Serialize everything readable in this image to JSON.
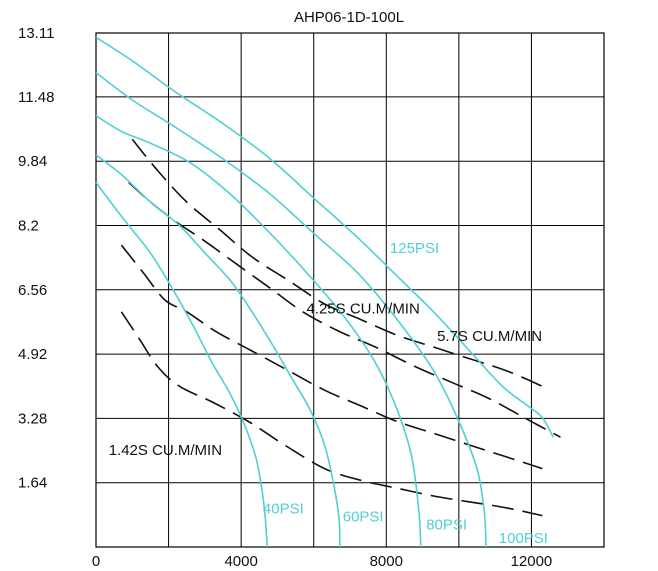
{
  "chart_data": {
    "type": "line",
    "title": "AHP06-1D-100L",
    "xlabel": "",
    "ylabel": "",
    "xlim": [
      0,
      14000
    ],
    "ylim": [
      0,
      13.11
    ],
    "x_ticks": [
      {
        "value": 0,
        "label": "0"
      },
      {
        "value": 4000,
        "label": "4000"
      },
      {
        "value": 8000,
        "label": "8000"
      },
      {
        "value": 12000,
        "label": "12000"
      }
    ],
    "y_ticks": [
      {
        "value": 1.64,
        "label": "1.64"
      },
      {
        "value": 3.28,
        "label": "3.28"
      },
      {
        "value": 4.92,
        "label": "4.92"
      },
      {
        "value": 6.56,
        "label": "6.56"
      },
      {
        "value": 8.2,
        "label": "8.2"
      },
      {
        "value": 9.84,
        "label": "9.84"
      },
      {
        "value": 11.48,
        "label": "11.48"
      },
      {
        "value": 13.11,
        "label": "13.11"
      }
    ],
    "grid": true,
    "colors": {
      "pressure": "#4fd0d3",
      "flow": "#111111",
      "grid": "#000000"
    },
    "pressure_series": [
      {
        "label": "40PSI",
        "style": "solid",
        "color": "#4fd0d3",
        "x": [
          0,
          400,
          900,
          1500,
          2100,
          2700,
          3200,
          3700,
          4100,
          4400,
          4550,
          4650,
          4700,
          4720
        ],
        "y": [
          9.3,
          8.8,
          8.2,
          7.5,
          6.6,
          5.6,
          4.7,
          3.9,
          3.1,
          2.3,
          1.6,
          0.9,
          0.3,
          0.0
        ]
      },
      {
        "label": "60PSI",
        "style": "solid",
        "color": "#4fd0d3",
        "x": [
          0,
          700,
          1500,
          2300,
          3000,
          3700,
          4300,
          4900,
          5400,
          5900,
          6300,
          6550,
          6700,
          6720
        ],
        "y": [
          10.0,
          9.5,
          8.8,
          8.2,
          7.5,
          6.8,
          6.0,
          5.1,
          4.3,
          3.5,
          2.6,
          1.6,
          0.7,
          0.0
        ]
      },
      {
        "label": "80PSI",
        "style": "solid",
        "color": "#4fd0d3",
        "x": [
          0,
          700,
          1500,
          2600,
          3700,
          4800,
          5900,
          6900,
          7700,
          8300,
          8700,
          8900,
          8950
        ],
        "y": [
          11.0,
          10.6,
          10.3,
          9.8,
          9.0,
          8.0,
          6.9,
          5.8,
          4.7,
          3.5,
          2.3,
          0.9,
          0.0
        ]
      },
      {
        "label": "100PSI",
        "style": "solid",
        "color": "#4fd0d3",
        "x": [
          0,
          1000,
          2200,
          3500,
          4800,
          6000,
          7200,
          8300,
          9300,
          10000,
          10500,
          10700,
          10750
        ],
        "y": [
          12.1,
          11.4,
          10.7,
          9.9,
          9.0,
          8.0,
          7.0,
          5.8,
          4.5,
          3.2,
          2.0,
          0.9,
          0.0
        ]
      },
      {
        "label": "125PSI",
        "style": "solid",
        "color": "#4fd0d3",
        "x": [
          0,
          1000,
          2200,
          3500,
          4800,
          6000,
          7200,
          8200,
          9300,
          10300,
          11200,
          11900,
          12300,
          12600
        ],
        "y": [
          13.0,
          12.4,
          11.6,
          10.8,
          9.9,
          8.9,
          7.9,
          7.0,
          6.0,
          5.0,
          4.1,
          3.6,
          3.3,
          2.8
        ]
      }
    ],
    "flow_series": [
      {
        "label": "1.42S CU.M/MIN",
        "style": "dashed",
        "color": "#111111",
        "x": [
          700,
          1200,
          1700,
          2300,
          3200,
          4200,
          5200,
          6300,
          7300,
          8300,
          9300,
          10300,
          11300,
          12300
        ],
        "y": [
          6.0,
          5.3,
          4.6,
          4.1,
          3.7,
          3.2,
          2.6,
          2.0,
          1.7,
          1.5,
          1.3,
          1.15,
          1.0,
          0.8
        ]
      },
      {
        "label": "",
        "style": "dashed",
        "color": "#111111",
        "x": [
          700,
          1300,
          1900,
          2500,
          3300,
          4300,
          5300,
          6300,
          7300,
          8300,
          9300,
          10300,
          11300,
          12300
        ],
        "y": [
          7.7,
          7.0,
          6.3,
          6.0,
          5.5,
          5.0,
          4.5,
          4.0,
          3.6,
          3.2,
          2.9,
          2.6,
          2.3,
          2.0
        ]
      },
      {
        "label": "4.25S CU.M/MIN",
        "style": "dashed",
        "color": "#111111",
        "x": [
          900,
          1500,
          2200,
          3000,
          3900,
          4800,
          5700,
          6700,
          7700,
          8800,
          9800,
          10800,
          11800,
          12800
        ],
        "y": [
          9.3,
          8.8,
          8.3,
          7.8,
          7.2,
          6.6,
          6.0,
          5.5,
          5.1,
          4.6,
          4.2,
          3.8,
          3.3,
          2.8
        ]
      },
      {
        "label": "5.7S CU.M/MIN",
        "style": "dashed",
        "color": "#111111",
        "x": [
          1000,
          1700,
          2500,
          3400,
          4300,
          5300,
          6300,
          7300,
          8300,
          9300,
          10300,
          11300,
          12300
        ],
        "y": [
          10.4,
          9.6,
          8.8,
          8.1,
          7.4,
          6.8,
          6.2,
          5.8,
          5.4,
          5.1,
          4.8,
          4.5,
          4.1
        ]
      }
    ],
    "annotations": [
      {
        "text": "125PSI",
        "color": "#4fd0d3",
        "x": 8100,
        "y": 7.5
      },
      {
        "text": "4.25S CU.M/MIN",
        "color": "#111111",
        "x": 5800,
        "y": 5.95
      },
      {
        "text": "5.7S CU.M/MIN",
        "color": "#111111",
        "x": 9400,
        "y": 5.25
      },
      {
        "text": "1.42S CU.M/MIN",
        "color": "#111111",
        "x": 350,
        "y": 2.35
      },
      {
        "text": "40PSI",
        "color": "#4fd0d3",
        "x": 4600,
        "y": 0.85
      },
      {
        "text": "60PSI",
        "color": "#4fd0d3",
        "x": 6800,
        "y": 0.65
      },
      {
        "text": "80PSI",
        "color": "#4fd0d3",
        "x": 9100,
        "y": 0.45
      },
      {
        "text": "100PSI",
        "color": "#4fd0d3",
        "x": 11100,
        "y": 0.1
      }
    ]
  }
}
